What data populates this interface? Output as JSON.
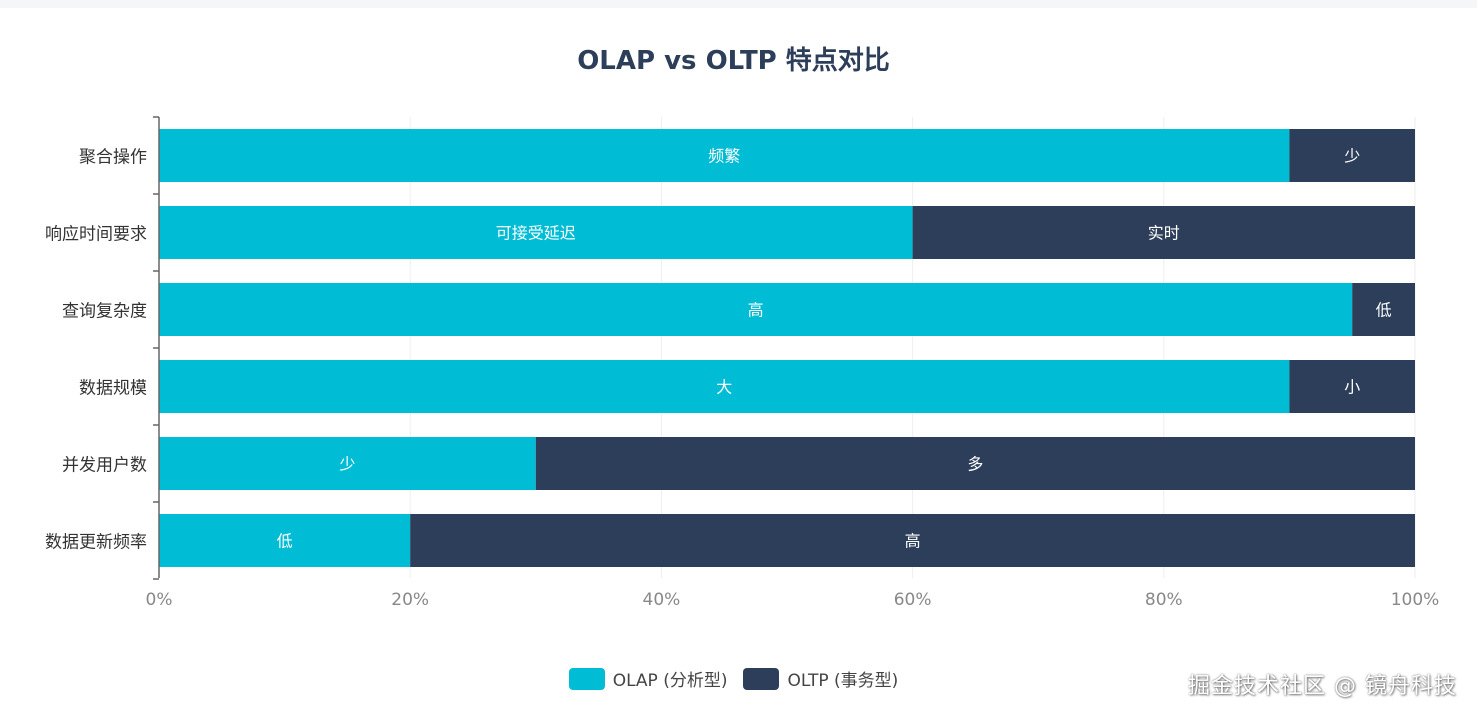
{
  "title": "OLAP vs OLTP 特点对比",
  "colors": {
    "olap": "#00bcd4",
    "oltp": "#2c3e5a",
    "axis": "#666666",
    "tick_text": "#888888",
    "category_text": "#333333",
    "grid": "#eeeeee"
  },
  "chart_data": {
    "type": "bar",
    "orientation": "horizontal",
    "stacked": true,
    "categories": [
      "聚合操作",
      "响应时间要求",
      "查询复杂度",
      "数据规模",
      "并发用户数",
      "数据更新频率"
    ],
    "series": [
      {
        "name": "OLAP (分析型)",
        "values": [
          90,
          60,
          95,
          90,
          30,
          20
        ],
        "labels": [
          "频繁",
          "可接受延迟",
          "高",
          "大",
          "少",
          "低"
        ]
      },
      {
        "name": "OLTP (事务型)",
        "values": [
          10,
          40,
          5,
          10,
          70,
          80
        ],
        "labels": [
          "少",
          "实时",
          "低",
          "小",
          "多",
          "高"
        ]
      }
    ],
    "xlim": [
      0,
      100
    ],
    "xticks": [
      "0%",
      "20%",
      "40%",
      "60%",
      "80%",
      "100%"
    ],
    "grid": true,
    "legend_position": "bottom"
  },
  "watermark": "掘金技术社区 @ 镜舟科技"
}
